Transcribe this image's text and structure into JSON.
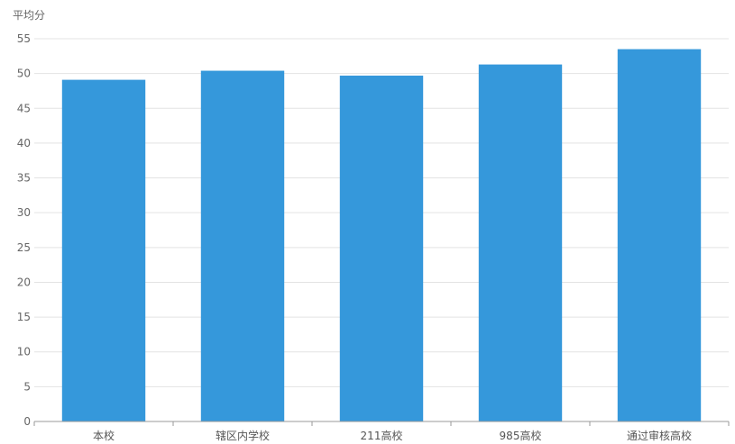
{
  "chart_data": {
    "type": "bar",
    "title": "",
    "ylabel": "平均分",
    "xlabel": "",
    "categories": [
      "本校",
      "辖区内学校",
      "211高校",
      "985高校",
      "通过审核高校"
    ],
    "values": [
      49.1,
      50.4,
      49.7,
      51.3,
      53.5
    ],
    "ylim": [
      0,
      55
    ],
    "yticks": [
      0,
      5,
      10,
      15,
      20,
      25,
      30,
      35,
      40,
      45,
      50,
      55
    ],
    "grid": true,
    "legend": "none",
    "bar_color": "#3598db"
  }
}
